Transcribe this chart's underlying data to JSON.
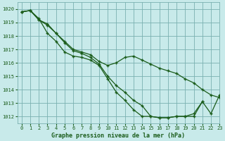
{
  "title": "Graphe pression niveau de la mer (hPa)",
  "background_color": "#c8eaea",
  "plot_bg_color": "#c8eaea",
  "grid_color": "#7ab0b0",
  "line_color": "#1a5c1a",
  "marker_color": "#1a5c1a",
  "xlim": [
    -0.5,
    23
  ],
  "ylim": [
    1011.5,
    1020.5
  ],
  "yticks": [
    1012,
    1013,
    1014,
    1015,
    1016,
    1017,
    1018,
    1019,
    1020
  ],
  "xticks": [
    0,
    1,
    2,
    3,
    4,
    5,
    6,
    7,
    8,
    9,
    10,
    11,
    12,
    13,
    14,
    15,
    16,
    17,
    18,
    19,
    20,
    21,
    22,
    23
  ],
  "series": [
    {
      "x": [
        0,
        1,
        2,
        3,
        4,
        5,
        6,
        7,
        8,
        9,
        10,
        11,
        12,
        13,
        14,
        15,
        16,
        17,
        18,
        19,
        20,
        21,
        22,
        23
      ],
      "y": [
        1019.8,
        1019.9,
        1019.2,
        1018.9,
        1018.2,
        1017.6,
        1017.0,
        1016.8,
        1016.6,
        1016.1,
        1015.8,
        1016.0,
        1016.4,
        1016.5,
        1016.2,
        1015.9,
        1015.6,
        1015.4,
        1015.2,
        1014.8,
        1014.5,
        1014.0,
        1013.6,
        1013.4
      ]
    },
    {
      "x": [
        0,
        1,
        2,
        3,
        4,
        5,
        6,
        7,
        8,
        9,
        10,
        11,
        12,
        13,
        14,
        15,
        16,
        17,
        18,
        19,
        20,
        21,
        22,
        23
      ],
      "y": [
        1019.8,
        1019.9,
        1019.2,
        1018.8,
        1018.2,
        1017.5,
        1016.9,
        1016.7,
        1016.4,
        1015.9,
        1015.0,
        1014.3,
        1013.8,
        1013.2,
        1012.8,
        1012.0,
        1011.9,
        1011.9,
        1012.0,
        1012.0,
        1012.0,
        1013.1,
        1012.2,
        1013.6
      ]
    },
    {
      "x": [
        0,
        1,
        2,
        3,
        4,
        5,
        6,
        7,
        8,
        9,
        10,
        11,
        12,
        13,
        14,
        15,
        16,
        17,
        18,
        19,
        20,
        21
      ],
      "y": [
        1019.8,
        1019.9,
        1019.3,
        1018.2,
        1017.6,
        1016.8,
        1016.5,
        1016.4,
        1016.2,
        1015.8,
        1014.8,
        1013.8,
        1013.2,
        1012.5,
        1012.0,
        1012.0,
        1011.9,
        1011.9,
        1012.0,
        1012.0,
        1012.2,
        1013.1
      ]
    }
  ]
}
